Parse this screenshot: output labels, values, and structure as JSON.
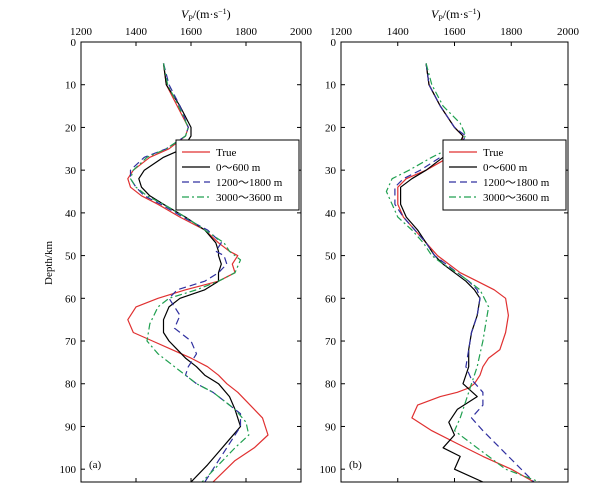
{
  "figure": {
    "ylabel": "Depth/km",
    "top_label_main": "V",
    "top_label_sub": "P",
    "top_label_unit": "/(m·s",
    "top_label_exp": "−1",
    "top_label_close": ")"
  },
  "series_colors": {
    "True": "#e03030",
    "0~600 m": "#000000",
    "1200~1800 m": "#3030a0",
    "3000~3600 m": "#20a050"
  },
  "chart_data": [
    {
      "type": "line",
      "panel_label": "(a)",
      "xlabel": "V_P/(m·s^-1)",
      "ylabel": "Depth/km",
      "xlim": [
        1200,
        2000
      ],
      "ylim": [
        0,
        103
      ],
      "y_inverted": true,
      "x_ticks": [
        "1200",
        "1400",
        "1600",
        "1800",
        "2000"
      ],
      "y_ticks": [
        "0",
        "10",
        "20",
        "30",
        "40",
        "50",
        "60",
        "70",
        "80",
        "90",
        "100"
      ],
      "legend": {
        "placement": "center-right",
        "labels": [
          "True",
          "0～600 m",
          "1200～1800 m",
          "3000～3600 m"
        ]
      },
      "series": [
        {
          "name": "True",
          "style": "solid",
          "x": [
            1500,
            1510,
            1550,
            1590,
            1580,
            1520,
            1450,
            1390,
            1370,
            1380,
            1420,
            1480,
            1560,
            1650,
            1700,
            1740,
            1770,
            1750,
            1760,
            1700,
            1580,
            1480,
            1400,
            1370,
            1390,
            1460,
            1530,
            1600,
            1660,
            1700,
            1730,
            1770,
            1860,
            1880,
            1830,
            1760,
            1680
          ],
          "y": [
            5,
            10,
            15,
            20,
            22,
            25,
            27,
            30,
            32,
            34,
            36,
            38,
            41,
            44,
            47,
            49,
            50,
            52,
            54,
            56,
            58,
            60,
            62,
            65,
            68,
            70,
            72,
            74,
            76,
            78,
            80,
            82,
            88,
            92,
            95,
            98,
            103
          ]
        },
        {
          "name": "0～600 m",
          "style": "solid",
          "x": [
            1500,
            1510,
            1560,
            1600,
            1600,
            1570,
            1500,
            1430,
            1410,
            1420,
            1450,
            1500,
            1580,
            1650,
            1690,
            1700,
            1700,
            1710,
            1700,
            1700,
            1650,
            1560,
            1520,
            1500,
            1500,
            1520,
            1550,
            1580,
            1620,
            1650,
            1700,
            1740,
            1760,
            1780,
            1740,
            1700,
            1660,
            1600
          ],
          "y": [
            5,
            10,
            15,
            20,
            22,
            25,
            27,
            30,
            32,
            34,
            36,
            38,
            41,
            44,
            47,
            49,
            50,
            52,
            54,
            56,
            58,
            60,
            62,
            65,
            68,
            70,
            72,
            74,
            76,
            78,
            80,
            83,
            86,
            90,
            93,
            96,
            99,
            103
          ]
        },
        {
          "name": "1200～1800 m",
          "style": "dash",
          "x": [
            1500,
            1520,
            1560,
            1590,
            1580,
            1510,
            1430,
            1380,
            1380,
            1400,
            1430,
            1490,
            1570,
            1660,
            1710,
            1690,
            1720,
            1730,
            1700,
            1650,
            1550,
            1520,
            1560,
            1540,
            1600,
            1620,
            1590,
            1580,
            1620,
            1680,
            1720,
            1780,
            1780,
            1740,
            1700,
            1650
          ],
          "y": [
            5,
            10,
            15,
            20,
            22,
            25,
            27,
            30,
            32,
            34,
            36,
            38,
            41,
            44,
            47,
            49,
            50,
            52,
            54,
            56,
            58,
            60,
            64,
            67,
            70,
            73,
            76,
            78,
            80,
            82,
            84,
            87,
            90,
            94,
            98,
            103
          ]
        },
        {
          "name": "3000～3600 m",
          "style": "dashdot",
          "x": [
            1500,
            1515,
            1555,
            1590,
            1580,
            1510,
            1440,
            1390,
            1380,
            1400,
            1440,
            1500,
            1580,
            1650,
            1720,
            1740,
            1780,
            1760,
            1700,
            1620,
            1520,
            1480,
            1450,
            1440,
            1480,
            1540,
            1580,
            1620,
            1680,
            1720,
            1760,
            1800,
            1810,
            1760,
            1700,
            1640
          ],
          "y": [
            5,
            10,
            15,
            20,
            22,
            25,
            27,
            30,
            32,
            34,
            36,
            38,
            41,
            44,
            47,
            49,
            51,
            54,
            56,
            58,
            60,
            62,
            66,
            70,
            73,
            76,
            78,
            80,
            82,
            84,
            86,
            89,
            92,
            95,
            99,
            103
          ]
        }
      ]
    },
    {
      "type": "line",
      "panel_label": "(b)",
      "xlabel": "V_P/(m·s^-1)",
      "ylabel": "",
      "xlim": [
        1200,
        2000
      ],
      "ylim": [
        0,
        103
      ],
      "y_inverted": true,
      "x_ticks": [
        "1200",
        "1400",
        "1600",
        "1800",
        "2000"
      ],
      "y_ticks": [
        "0",
        "10",
        "20",
        "30",
        "40",
        "50",
        "60",
        "70",
        "80",
        "90",
        "100"
      ],
      "legend": {
        "placement": "center-right",
        "labels": [
          "True",
          "0～600 m",
          "1200～1800 m",
          "3000～3600 m"
        ]
      },
      "series": [
        {
          "name": "True",
          "style": "solid",
          "x": [
            1500,
            1510,
            1550,
            1600,
            1630,
            1620,
            1580,
            1500,
            1430,
            1400,
            1400,
            1420,
            1460,
            1500,
            1540,
            1580,
            1620,
            1680,
            1740,
            1780,
            1790,
            1780,
            1760,
            1720,
            1700,
            1690,
            1670,
            1650,
            1610,
            1550,
            1470,
            1450,
            1520,
            1610,
            1700,
            1800,
            1880
          ],
          "y": [
            5,
            10,
            15,
            20,
            22,
            25,
            27,
            30,
            32,
            34,
            38,
            41,
            44,
            47,
            50,
            52,
            54,
            56,
            58,
            60,
            64,
            68,
            72,
            74,
            76,
            78,
            80,
            81,
            82,
            83,
            85,
            88,
            91,
            94,
            97,
            100,
            103
          ]
        },
        {
          "name": "0～600 m",
          "style": "solid",
          "x": [
            1500,
            1510,
            1550,
            1600,
            1630,
            1610,
            1560,
            1500,
            1450,
            1410,
            1410,
            1430,
            1470,
            1500,
            1530,
            1560,
            1600,
            1640,
            1670,
            1690,
            1680,
            1660,
            1650,
            1650,
            1640,
            1630,
            1680,
            1610,
            1580,
            1600,
            1560,
            1620,
            1600,
            1700
          ],
          "y": [
            5,
            10,
            15,
            20,
            22,
            25,
            27,
            30,
            32,
            34,
            38,
            41,
            44,
            47,
            50,
            52,
            54,
            56,
            58,
            60,
            64,
            68,
            72,
            76,
            78,
            80,
            83,
            86,
            89,
            92,
            95,
            97,
            100,
            103
          ]
        },
        {
          "name": "1200～1800 m",
          "style": "dash",
          "x": [
            1500,
            1510,
            1550,
            1600,
            1640,
            1610,
            1550,
            1480,
            1420,
            1390,
            1390,
            1420,
            1460,
            1500,
            1530,
            1570,
            1610,
            1650,
            1680,
            1690,
            1680,
            1660,
            1650,
            1640,
            1660,
            1700,
            1700,
            1660,
            1700,
            1760,
            1820,
            1880
          ],
          "y": [
            5,
            10,
            15,
            20,
            22,
            25,
            27,
            30,
            32,
            34,
            38,
            41,
            44,
            47,
            50,
            52,
            54,
            56,
            58,
            60,
            64,
            68,
            72,
            76,
            79,
            82,
            85,
            88,
            91,
            95,
            99,
            103
          ]
        },
        {
          "name": "3000～3600 m",
          "style": "dashdot",
          "x": [
            1500,
            1520,
            1560,
            1620,
            1640,
            1580,
            1520,
            1440,
            1380,
            1360,
            1380,
            1400,
            1450,
            1490,
            1520,
            1560,
            1610,
            1650,
            1690,
            1720,
            1710,
            1700,
            1690,
            1680,
            1660,
            1640,
            1620,
            1600,
            1660,
            1720,
            1780,
            1860,
            1900
          ],
          "y": [
            5,
            10,
            15,
            19,
            22,
            25,
            27,
            30,
            32,
            35,
            38,
            41,
            44,
            47,
            50,
            52,
            54,
            56,
            58,
            62,
            66,
            70,
            73,
            76,
            80,
            84,
            88,
            91,
            94,
            97,
            100,
            102,
            103
          ]
        }
      ]
    }
  ]
}
